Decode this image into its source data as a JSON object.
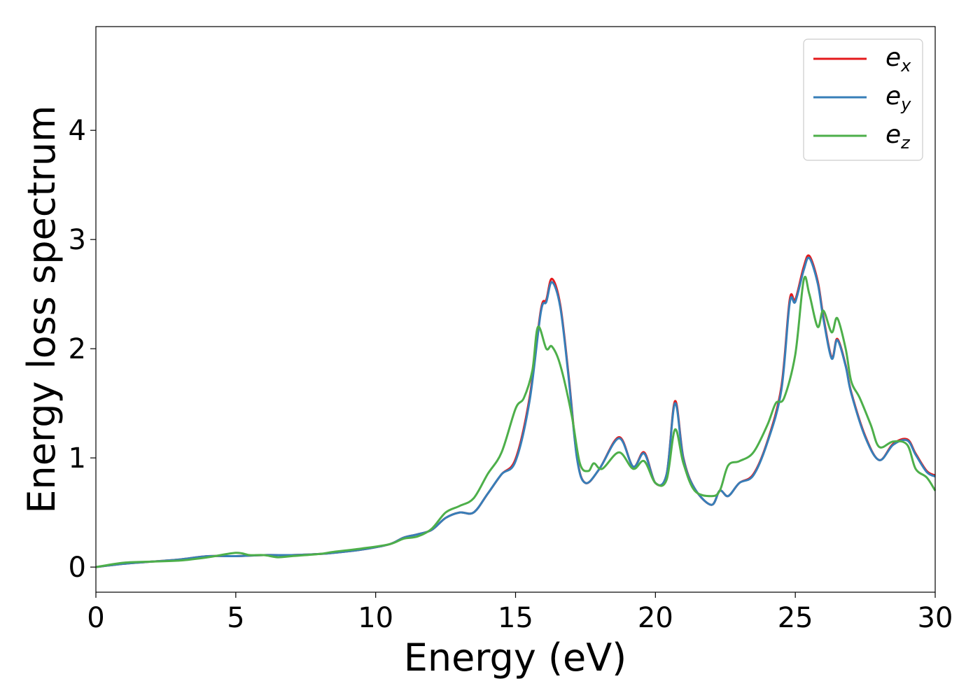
{
  "chart_data": {
    "type": "line",
    "xlabel": "Energy (eV)",
    "ylabel": "Energy loss spectrum",
    "xlim": [
      0,
      30
    ],
    "ylim": [
      -0.23,
      4.95
    ],
    "xticks": [
      "0",
      "5",
      "10",
      "15",
      "20",
      "25",
      "30"
    ],
    "yticks": [
      "0",
      "1",
      "2",
      "3",
      "4"
    ],
    "grid": false,
    "legend_position": "top-right",
    "series": [
      {
        "name": "e",
        "sub": "x",
        "color": "#e41a1c",
        "points": [
          [
            0,
            0
          ],
          [
            1,
            0.03
          ],
          [
            2,
            0.05
          ],
          [
            3,
            0.07
          ],
          [
            4,
            0.1
          ],
          [
            5,
            0.1
          ],
          [
            6,
            0.11
          ],
          [
            7,
            0.11
          ],
          [
            8,
            0.12
          ],
          [
            8.5,
            0.13
          ],
          [
            9.5,
            0.16
          ],
          [
            10.5,
            0.21
          ],
          [
            11,
            0.27
          ],
          [
            11.5,
            0.3
          ],
          [
            12,
            0.34
          ],
          [
            12.5,
            0.45
          ],
          [
            13,
            0.5
          ],
          [
            13.5,
            0.5
          ],
          [
            14,
            0.67
          ],
          [
            14.5,
            0.85
          ],
          [
            15,
            0.99
          ],
          [
            15.5,
            1.55
          ],
          [
            15.9,
            2.35
          ],
          [
            16.1,
            2.45
          ],
          [
            16.3,
            2.64
          ],
          [
            16.6,
            2.4
          ],
          [
            16.9,
            1.75
          ],
          [
            17.2,
            1.0
          ],
          [
            17.5,
            0.77
          ],
          [
            18,
            0.9
          ],
          [
            18.7,
            1.19
          ],
          [
            19.2,
            0.92
          ],
          [
            19.6,
            1.05
          ],
          [
            20,
            0.77
          ],
          [
            20.4,
            0.85
          ],
          [
            20.7,
            1.52
          ],
          [
            21,
            1.0
          ],
          [
            21.4,
            0.72
          ],
          [
            22,
            0.57
          ],
          [
            22.3,
            0.7
          ],
          [
            22.6,
            0.65
          ],
          [
            23,
            0.77
          ],
          [
            23.5,
            0.85
          ],
          [
            24,
            1.15
          ],
          [
            24.5,
            1.65
          ],
          [
            24.8,
            2.45
          ],
          [
            25,
            2.45
          ],
          [
            25.3,
            2.75
          ],
          [
            25.5,
            2.85
          ],
          [
            25.8,
            2.62
          ],
          [
            26,
            2.3
          ],
          [
            26.3,
            1.92
          ],
          [
            26.5,
            2.09
          ],
          [
            26.8,
            1.85
          ],
          [
            27,
            1.6
          ],
          [
            27.5,
            1.2
          ],
          [
            28,
            0.98
          ],
          [
            28.5,
            1.13
          ],
          [
            29,
            1.17
          ],
          [
            29.3,
            1.04
          ],
          [
            29.7,
            0.88
          ],
          [
            30,
            0.84
          ]
        ]
      },
      {
        "name": "e",
        "sub": "y",
        "color": "#377eb8",
        "points": [
          [
            0,
            0
          ],
          [
            1,
            0.03
          ],
          [
            2,
            0.05
          ],
          [
            3,
            0.07
          ],
          [
            4,
            0.1
          ],
          [
            5,
            0.1
          ],
          [
            6,
            0.11
          ],
          [
            7,
            0.11
          ],
          [
            8,
            0.12
          ],
          [
            8.5,
            0.13
          ],
          [
            9.5,
            0.16
          ],
          [
            10.5,
            0.21
          ],
          [
            11,
            0.27
          ],
          [
            11.5,
            0.3
          ],
          [
            12,
            0.34
          ],
          [
            12.5,
            0.45
          ],
          [
            13,
            0.5
          ],
          [
            13.5,
            0.5
          ],
          [
            14,
            0.67
          ],
          [
            14.5,
            0.85
          ],
          [
            15,
            0.97
          ],
          [
            15.5,
            1.52
          ],
          [
            15.9,
            2.33
          ],
          [
            16.1,
            2.43
          ],
          [
            16.3,
            2.61
          ],
          [
            16.6,
            2.38
          ],
          [
            16.9,
            1.73
          ],
          [
            17.2,
            0.99
          ],
          [
            17.5,
            0.77
          ],
          [
            18,
            0.9
          ],
          [
            18.7,
            1.18
          ],
          [
            19.2,
            0.92
          ],
          [
            19.6,
            1.04
          ],
          [
            20,
            0.77
          ],
          [
            20.4,
            0.85
          ],
          [
            20.7,
            1.5
          ],
          [
            21,
            0.99
          ],
          [
            21.4,
            0.72
          ],
          [
            22,
            0.57
          ],
          [
            22.3,
            0.7
          ],
          [
            22.6,
            0.65
          ],
          [
            23,
            0.77
          ],
          [
            23.5,
            0.84
          ],
          [
            24,
            1.14
          ],
          [
            24.5,
            1.62
          ],
          [
            24.8,
            2.42
          ],
          [
            25,
            2.43
          ],
          [
            25.3,
            2.72
          ],
          [
            25.5,
            2.83
          ],
          [
            25.8,
            2.6
          ],
          [
            26,
            2.28
          ],
          [
            26.3,
            1.91
          ],
          [
            26.5,
            2.08
          ],
          [
            26.8,
            1.84
          ],
          [
            27,
            1.59
          ],
          [
            27.5,
            1.19
          ],
          [
            28,
            0.98
          ],
          [
            28.5,
            1.12
          ],
          [
            29,
            1.16
          ],
          [
            29.3,
            1.03
          ],
          [
            29.7,
            0.87
          ],
          [
            30,
            0.83
          ]
        ]
      },
      {
        "name": "e",
        "sub": "z",
        "color": "#4daf4a",
        "points": [
          [
            0,
            0
          ],
          [
            1,
            0.04
          ],
          [
            2,
            0.05
          ],
          [
            3,
            0.06
          ],
          [
            4,
            0.09
          ],
          [
            5,
            0.13
          ],
          [
            5.5,
            0.11
          ],
          [
            6,
            0.11
          ],
          [
            6.5,
            0.09
          ],
          [
            7,
            0.1
          ],
          [
            8,
            0.12
          ],
          [
            8.5,
            0.14
          ],
          [
            9.5,
            0.17
          ],
          [
            10.5,
            0.21
          ],
          [
            11,
            0.26
          ],
          [
            11.5,
            0.28
          ],
          [
            12,
            0.35
          ],
          [
            12.5,
            0.5
          ],
          [
            13,
            0.56
          ],
          [
            13.5,
            0.63
          ],
          [
            14,
            0.85
          ],
          [
            14.5,
            1.05
          ],
          [
            15,
            1.45
          ],
          [
            15.3,
            1.55
          ],
          [
            15.6,
            1.8
          ],
          [
            15.8,
            2.2
          ],
          [
            16.1,
            2.0
          ],
          [
            16.3,
            2.02
          ],
          [
            16.6,
            1.85
          ],
          [
            17,
            1.4
          ],
          [
            17.3,
            0.95
          ],
          [
            17.6,
            0.88
          ],
          [
            17.8,
            0.95
          ],
          [
            18.1,
            0.9
          ],
          [
            18.7,
            1.05
          ],
          [
            19.2,
            0.9
          ],
          [
            19.6,
            0.97
          ],
          [
            20,
            0.77
          ],
          [
            20.4,
            0.8
          ],
          [
            20.7,
            1.26
          ],
          [
            21,
            0.95
          ],
          [
            21.4,
            0.7
          ],
          [
            22,
            0.65
          ],
          [
            22.3,
            0.7
          ],
          [
            22.6,
            0.93
          ],
          [
            23,
            0.97
          ],
          [
            23.5,
            1.05
          ],
          [
            24,
            1.3
          ],
          [
            24.3,
            1.5
          ],
          [
            24.6,
            1.55
          ],
          [
            25,
            1.95
          ],
          [
            25.3,
            2.63
          ],
          [
            25.5,
            2.5
          ],
          [
            25.8,
            2.2
          ],
          [
            26,
            2.35
          ],
          [
            26.3,
            2.15
          ],
          [
            26.5,
            2.28
          ],
          [
            26.8,
            2.0
          ],
          [
            27,
            1.7
          ],
          [
            27.3,
            1.55
          ],
          [
            27.7,
            1.3
          ],
          [
            28,
            1.1
          ],
          [
            28.5,
            1.15
          ],
          [
            29,
            1.12
          ],
          [
            29.3,
            0.9
          ],
          [
            29.7,
            0.82
          ],
          [
            30,
            0.7
          ]
        ]
      }
    ]
  }
}
